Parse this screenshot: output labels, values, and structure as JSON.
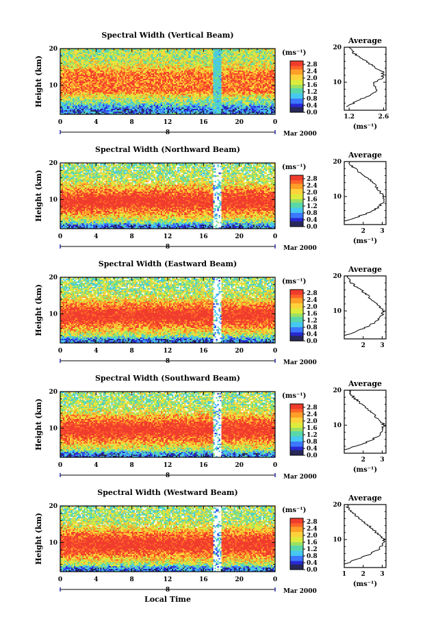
{
  "figure": {
    "xlabel": "Local Time",
    "date_label": "Mar 2000",
    "day_label": "8",
    "colorbar_unit": "(ms⁻¹)",
    "colorbar_ticks": [
      "2.8",
      "2.4",
      "2.0",
      "1.6",
      "1.2",
      "0.8",
      "0.4",
      "0.0"
    ],
    "ylabel": "Height (km)",
    "avg_title": "Average",
    "avg_xlabel": "(ms⁻¹)"
  },
  "colors": {
    "colormap": [
      "#28285a",
      "#2828d2",
      "#3c78ff",
      "#46c8f0",
      "#5ad7aa",
      "#9be164",
      "#dceb3c",
      "#ffd23c",
      "#ffa028",
      "#ff6428",
      "#f03c2d"
    ]
  },
  "chart_data": [
    {
      "type": "heatmap",
      "title": "Spectral Width (Vertical Beam)",
      "xlabel": "Local Time",
      "ylabel": "Height (km)",
      "x_ticks": [
        "0",
        "4",
        "8",
        "12",
        "16",
        "20",
        "0"
      ],
      "y_ticks": [
        "20",
        "10"
      ],
      "xlim": [
        0,
        24
      ],
      "ylim": [
        2,
        20
      ],
      "clim": [
        0.0,
        3.0
      ],
      "avg_profile": {
        "xlabel": "(ms⁻¹)",
        "x_ticks": [
          "1.2",
          "2.6"
        ],
        "xlim": [
          1.0,
          2.7
        ],
        "heights": [
          3,
          4,
          5,
          6,
          7,
          8,
          9,
          10,
          11,
          12,
          13,
          14,
          15,
          16,
          17,
          18,
          19,
          20
        ],
        "values": [
          1.15,
          1.35,
          1.6,
          1.95,
          2.2,
          2.3,
          2.2,
          2.25,
          2.5,
          2.6,
          2.55,
          2.3,
          2.1,
          1.9,
          1.7,
          1.45,
          1.3,
          1.2
        ]
      }
    },
    {
      "type": "heatmap",
      "title": "Spectral Width (Northward Beam)",
      "xlabel": "Local Time",
      "ylabel": "Height (km)",
      "x_ticks": [
        "0",
        "4",
        "8",
        "12",
        "16",
        "20",
        "0"
      ],
      "y_ticks": [
        "20",
        "10"
      ],
      "xlim": [
        0,
        24
      ],
      "ylim": [
        2,
        20
      ],
      "clim": [
        0.0,
        3.0
      ],
      "avg_profile": {
        "xlabel": "(ms⁻¹)",
        "x_ticks": [
          "2",
          "3"
        ],
        "xlim": [
          1.0,
          3.2
        ],
        "heights": [
          3,
          4,
          5,
          6,
          7,
          8,
          9,
          10,
          11,
          12,
          13,
          14,
          15,
          16,
          17,
          18,
          19,
          20
        ],
        "values": [
          1.1,
          1.6,
          2.1,
          2.5,
          2.8,
          3.0,
          3.05,
          3.1,
          2.95,
          2.8,
          2.65,
          2.5,
          2.3,
          2.1,
          1.8,
          1.55,
          1.35,
          1.3
        ]
      }
    },
    {
      "type": "heatmap",
      "title": "Spectral Width (Eastward Beam)",
      "xlabel": "Local Time",
      "ylabel": "Height (km)",
      "x_ticks": [
        "0",
        "4",
        "8",
        "12",
        "16",
        "20",
        "0"
      ],
      "y_ticks": [
        "20",
        "10"
      ],
      "xlim": [
        0,
        24
      ],
      "ylim": [
        2,
        20
      ],
      "clim": [
        0.0,
        3.0
      ],
      "avg_profile": {
        "xlabel": "",
        "x_ticks": [
          "2",
          "3"
        ],
        "xlim": [
          1.0,
          3.2
        ],
        "heights": [
          3,
          4,
          5,
          6,
          7,
          8,
          9,
          10,
          11,
          12,
          13,
          14,
          15,
          16,
          17,
          18,
          19,
          20
        ],
        "values": [
          1.1,
          1.5,
          2.0,
          2.4,
          2.7,
          2.9,
          3.0,
          3.1,
          2.9,
          2.7,
          2.5,
          2.3,
          2.1,
          1.9,
          1.6,
          1.4,
          1.25,
          1.2
        ]
      }
    },
    {
      "type": "heatmap",
      "title": "Spectral Width (Southward Beam)",
      "xlabel": "Local Time",
      "ylabel": "Height (km)",
      "x_ticks": [
        "0",
        "4",
        "8",
        "12",
        "16",
        "20",
        "0"
      ],
      "y_ticks": [
        "20",
        "10"
      ],
      "xlim": [
        0,
        24
      ],
      "ylim": [
        2,
        20
      ],
      "clim": [
        0.0,
        3.0
      ],
      "avg_profile": {
        "xlabel": "(ms⁻¹)",
        "x_ticks": [
          "2",
          "3"
        ],
        "xlim": [
          1.0,
          3.2
        ],
        "heights": [
          3,
          4,
          5,
          6,
          7,
          8,
          9,
          10,
          11,
          12,
          13,
          14,
          15,
          16,
          17,
          18,
          19,
          20
        ],
        "values": [
          1.1,
          1.6,
          2.1,
          2.5,
          2.8,
          3.0,
          3.05,
          3.1,
          2.95,
          2.75,
          2.55,
          2.35,
          2.15,
          1.9,
          1.7,
          1.5,
          1.3,
          1.25
        ]
      }
    },
    {
      "type": "heatmap",
      "title": "Spectral Width (Westward Beam)",
      "xlabel": "Local Time",
      "ylabel": "Height (km)",
      "x_ticks": [
        "0",
        "4",
        "8",
        "12",
        "16",
        "20",
        "0"
      ],
      "y_ticks": [
        "20",
        "10"
      ],
      "xlim": [
        0,
        24
      ],
      "ylim": [
        2,
        20
      ],
      "clim": [
        0.0,
        3.0
      ],
      "avg_profile": {
        "xlabel": "(ms⁻¹)",
        "x_ticks": [
          "1",
          "2",
          "3"
        ],
        "xlim": [
          1.0,
          3.2
        ],
        "heights": [
          3,
          4,
          5,
          6,
          7,
          8,
          9,
          10,
          11,
          12,
          13,
          14,
          15,
          16,
          17,
          18,
          19,
          20
        ],
        "values": [
          1.05,
          1.5,
          2.0,
          2.4,
          2.75,
          2.95,
          3.05,
          3.1,
          2.9,
          2.7,
          2.5,
          2.3,
          2.05,
          1.8,
          1.6,
          1.4,
          1.2,
          1.15
        ]
      }
    }
  ]
}
